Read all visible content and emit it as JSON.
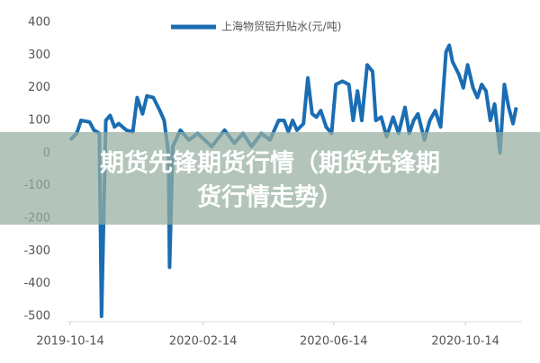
{
  "chart_data": {
    "type": "line",
    "legend_position": "top",
    "x": [
      "2019-10-14",
      "2019-10-20",
      "2019-10-24",
      "2019-11-01",
      "2019-11-05",
      "2019-11-10",
      "2019-11-12",
      "2019-11-16",
      "2019-11-20",
      "2019-11-24",
      "2019-11-28",
      "2019-12-05",
      "2019-12-11",
      "2019-12-15",
      "2019-12-20",
      "2019-12-24",
      "2019-12-30",
      "2020-01-05",
      "2020-01-09",
      "2020-01-13",
      "2020-01-14",
      "2020-01-17",
      "2020-01-24",
      "2020-02-01",
      "2020-02-09",
      "2020-02-22",
      "2020-03-05",
      "2020-03-14",
      "2020-03-22",
      "2020-03-30",
      "2020-04-08",
      "2020-04-16",
      "2020-04-24",
      "2020-04-29",
      "2020-05-03",
      "2020-05-07",
      "2020-05-11",
      "2020-05-17",
      "2020-05-21",
      "2020-05-25",
      "2020-05-29",
      "2020-06-02",
      "2020-06-07",
      "2020-06-12",
      "2020-06-16",
      "2020-06-22",
      "2020-06-28",
      "2020-07-02",
      "2020-07-06",
      "2020-07-10",
      "2020-07-15",
      "2020-07-20",
      "2020-07-23",
      "2020-07-28",
      "2020-08-02",
      "2020-08-08",
      "2020-08-13",
      "2020-08-19",
      "2020-08-23",
      "2020-08-27",
      "2020-08-31",
      "2020-09-06",
      "2020-09-11",
      "2020-09-16",
      "2020-09-21",
      "2020-09-26",
      "2020-09-29",
      "2020-10-02",
      "2020-10-08",
      "2020-10-12",
      "2020-10-16",
      "2020-10-21",
      "2020-10-25",
      "2020-10-29",
      "2020-11-02",
      "2020-11-06",
      "2020-11-10",
      "2020-11-15",
      "2020-11-19",
      "2020-11-23",
      "2020-11-27",
      "2020-11-30"
    ],
    "series": [
      {
        "name": "上海物贸铝升贴水(元/吨)",
        "color": "#1b6db3",
        "values": [
          40,
          60,
          100,
          95,
          70,
          60,
          -500,
          100,
          115,
          80,
          90,
          70,
          65,
          170,
          120,
          175,
          170,
          130,
          100,
          0,
          -350,
          20,
          70,
          40,
          60,
          20,
          70,
          30,
          60,
          20,
          60,
          40,
          100,
          100,
          65,
          100,
          70,
          90,
          230,
          120,
          110,
          130,
          80,
          60,
          210,
          220,
          210,
          100,
          190,
          100,
          270,
          250,
          100,
          110,
          50,
          110,
          60,
          140,
          60,
          100,
          120,
          40,
          100,
          130,
          80,
          310,
          330,
          280,
          240,
          200,
          270,
          200,
          170,
          210,
          190,
          100,
          150,
          0,
          210,
          140,
          90,
          140
        ]
      }
    ],
    "xlim": [
      "2019-10-12",
      "2020-12-05"
    ],
    "xticks": [
      "2019-10-14",
      "2020-02-14",
      "2020-06-14",
      "2020-10-14"
    ],
    "ylim": [
      -500,
      400
    ],
    "yticks": [
      -500,
      -400,
      -300,
      -200,
      -100,
      0,
      100,
      200,
      300,
      400
    ],
    "overlay": [
      "期货先锋期货行情（期货先锋期",
      "货行情走势）"
    ]
  }
}
